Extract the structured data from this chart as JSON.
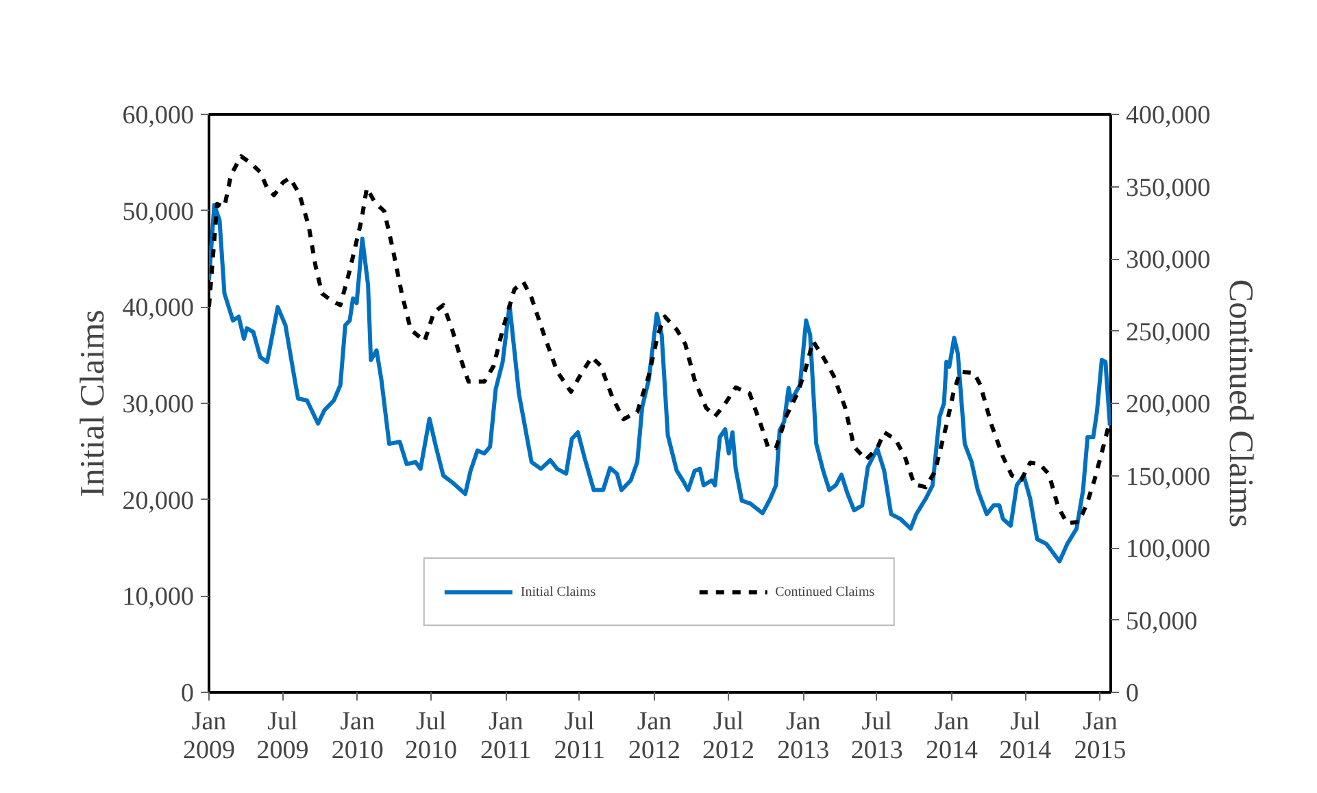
{
  "chart_data": {
    "type": "line",
    "ylabel": "Initial Claims",
    "y2label": "Continued Claims",
    "xlim": [
      "2009-01-01",
      "2015-01-27"
    ],
    "xticks": [
      {
        "value": "2009-01",
        "label": "Jan 2009"
      },
      {
        "value": "2009-07",
        "label": "Jul 2009"
      },
      {
        "value": "2010-01",
        "label": "Jan 2010"
      },
      {
        "value": "2010-07",
        "label": "Jul 2010"
      },
      {
        "value": "2011-01",
        "label": "Jan 2011"
      },
      {
        "value": "2011-07",
        "label": "Jul 2011"
      },
      {
        "value": "2012-01",
        "label": "Jan 2012"
      },
      {
        "value": "2012-07",
        "label": "Jul 2012"
      },
      {
        "value": "2013-01",
        "label": "Jan 2013"
      },
      {
        "value": "2013-07",
        "label": "Jul 2013"
      },
      {
        "value": "2014-01",
        "label": "Jan 2014"
      },
      {
        "value": "2014-07",
        "label": "Jul 2014"
      },
      {
        "value": "2015-01",
        "label": "Jan 2015"
      }
    ],
    "ylim": [
      0,
      60000
    ],
    "yticks": [
      0,
      {
        "value": 10000,
        "label": "10,000"
      },
      {
        "value": 20000,
        "label": "20,000"
      },
      {
        "value": 30000,
        "label": "30,000"
      },
      {
        "value": 40000,
        "label": "40,000"
      },
      {
        "value": 50000,
        "label": "50,000"
      },
      {
        "value": 60000,
        "label": "60,000"
      }
    ],
    "y2lim": [
      0,
      400000
    ],
    "y2ticks": [
      0,
      {
        "value": 50000,
        "label": "50,000"
      },
      {
        "value": 100000,
        "label": "100,000"
      },
      {
        "value": 150000,
        "label": "150,000"
      },
      {
        "value": 200000,
        "label": "200,000"
      },
      {
        "value": 250000,
        "label": "250,000"
      },
      {
        "value": 300000,
        "label": "300,000"
      },
      {
        "value": 350000,
        "label": "350,000"
      },
      {
        "value": 400000,
        "label": "400,000"
      }
    ],
    "legend": "bottom",
    "series": [
      {
        "name": "Initial Claims",
        "color": "#0070c0",
        "line_style": "solid",
        "x": [
          "2009-01-01",
          "2009-01-14",
          "2009-01-27",
          "2009-02-08",
          "2009-03-01",
          "2009-03-15",
          "2009-03-28",
          "2009-04-04",
          "2009-04-20",
          "2009-05-07",
          "2009-05-24",
          "2009-06-19",
          "2009-07-08",
          "2009-07-27",
          "2009-08-08",
          "2009-08-30",
          "2009-09-26",
          "2009-10-12",
          "2009-11-04",
          "2009-11-20",
          "2009-12-02",
          "2009-12-13",
          "2009-12-21",
          "2009-12-30",
          "2010-01-13",
          "2010-01-27",
          "2010-02-03",
          "2010-02-17",
          "2010-03-01",
          "2010-03-20",
          "2010-04-15",
          "2010-05-02",
          "2010-05-24",
          "2010-06-05",
          "2010-06-27",
          "2010-07-14",
          "2010-07-31",
          "2010-08-22",
          "2010-09-23",
          "2010-10-06",
          "2010-10-23",
          "2010-11-09",
          "2010-11-23",
          "2010-12-07",
          "2010-12-24",
          "2011-01-10",
          "2011-02-02",
          "2011-03-05",
          "2011-03-28",
          "2011-04-20",
          "2011-05-07",
          "2011-05-29",
          "2011-06-12",
          "2011-06-27",
          "2011-07-13",
          "2011-08-05",
          "2011-08-28",
          "2011-09-14",
          "2011-10-01",
          "2011-10-12",
          "2011-11-04",
          "2011-11-20",
          "2011-12-02",
          "2011-12-18",
          "2012-01-07",
          "2012-01-19",
          "2012-02-03",
          "2012-02-25",
          "2012-03-11",
          "2012-03-24",
          "2012-04-09",
          "2012-04-22",
          "2012-05-01",
          "2012-05-21",
          "2012-05-29",
          "2012-06-10",
          "2012-06-23",
          "2012-07-02",
          "2012-07-11",
          "2012-07-19",
          "2012-08-03",
          "2012-08-24",
          "2012-09-23",
          "2012-10-12",
          "2012-10-26",
          "2012-11-04",
          "2012-11-15",
          "2012-11-26",
          "2012-12-02",
          "2012-12-24",
          "2013-01-08",
          "2013-01-18",
          "2013-02-02",
          "2013-02-19",
          "2013-03-06",
          "2013-03-22",
          "2013-04-05",
          "2013-04-20",
          "2013-05-06",
          "2013-05-26",
          "2013-06-09",
          "2013-07-02",
          "2013-07-19",
          "2013-08-05",
          "2013-08-28",
          "2013-09-22",
          "2013-10-06",
          "2013-10-29",
          "2013-11-15",
          "2013-12-02",
          "2013-12-13",
          "2013-12-19",
          "2013-12-26",
          "2014-01-07",
          "2014-01-16",
          "2014-02-02",
          "2014-02-19",
          "2014-03-06",
          "2014-03-28",
          "2014-04-14",
          "2014-04-28",
          "2014-05-07",
          "2014-05-26",
          "2014-06-10",
          "2014-06-27",
          "2014-07-13",
          "2014-07-30",
          "2014-08-22",
          "2014-09-23",
          "2014-10-12",
          "2014-11-04",
          "2014-11-20",
          "2014-12-01",
          "2014-12-15",
          "2014-12-24",
          "2015-01-05",
          "2015-01-14",
          "2015-01-25"
        ],
        "values": [
          42800,
          50600,
          49000,
          41400,
          38600,
          39000,
          36700,
          37800,
          37400,
          34800,
          34300,
          40000,
          38100,
          33400,
          30500,
          30300,
          27900,
          29300,
          30300,
          31900,
          38100,
          38600,
          40900,
          40400,
          47100,
          42300,
          34500,
          35500,
          32400,
          25800,
          26000,
          23700,
          23900,
          23200,
          28400,
          25300,
          22500,
          21800,
          20600,
          23000,
          25100,
          24800,
          25500,
          31500,
          34300,
          40200,
          31000,
          23900,
          23200,
          24100,
          23200,
          22700,
          26300,
          27000,
          24400,
          21000,
          21000,
          23300,
          22700,
          21000,
          22000,
          23900,
          29600,
          32400,
          39300,
          37100,
          26700,
          23000,
          22000,
          21000,
          23000,
          23200,
          21500,
          22000,
          21500,
          26500,
          27300,
          24800,
          27000,
          23200,
          19900,
          19600,
          18600,
          20100,
          21500,
          27200,
          28100,
          31600,
          30300,
          31900,
          38600,
          37100,
          25800,
          23000,
          21000,
          21500,
          22600,
          20600,
          18900,
          19400,
          23400,
          25300,
          23000,
          18500,
          18000,
          17000,
          18500,
          20100,
          21500,
          28600,
          30000,
          34300,
          33800,
          36800,
          35200,
          25800,
          23900,
          21000,
          18500,
          19400,
          19400,
          18000,
          17300,
          21500,
          22500,
          20100,
          15900,
          15400,
          13600,
          15400,
          17000,
          21000,
          26500,
          26500,
          29100,
          34500,
          34300,
          27700
        ]
      },
      {
        "name": "Continued Claims",
        "color": "#000000",
        "line_style": "dashed",
        "axis": "y2",
        "x": [
          "2009-01-01",
          "2009-01-21",
          "2009-02-08",
          "2009-02-24",
          "2009-03-21",
          "2009-04-15",
          "2009-05-07",
          "2009-05-24",
          "2009-06-10",
          "2009-07-02",
          "2009-07-19",
          "2009-08-11",
          "2009-09-03",
          "2009-09-20",
          "2009-10-06",
          "2009-10-29",
          "2009-11-20",
          "2009-12-13",
          "2010-01-11",
          "2010-01-24",
          "2010-02-13",
          "2010-03-08",
          "2010-03-28",
          "2010-04-20",
          "2010-05-12",
          "2010-06-15",
          "2010-07-08",
          "2010-07-31",
          "2010-08-22",
          "2010-09-14",
          "2010-10-01",
          "2010-11-09",
          "2010-12-02",
          "2010-12-24",
          "2011-01-22",
          "2011-02-13",
          "2011-03-05",
          "2011-04-04",
          "2011-05-07",
          "2011-06-10",
          "2011-07-02",
          "2011-07-31",
          "2011-08-22",
          "2011-09-20",
          "2011-10-17",
          "2011-11-20",
          "2011-12-18",
          "2012-01-10",
          "2012-01-27",
          "2012-02-25",
          "2012-03-17",
          "2012-04-09",
          "2012-05-07",
          "2012-05-29",
          "2012-06-21",
          "2012-07-19",
          "2012-08-22",
          "2012-09-19",
          "2012-10-06",
          "2012-10-26",
          "2012-11-20",
          "2012-12-18",
          "2013-01-05",
          "2013-01-25",
          "2013-02-19",
          "2013-03-17",
          "2013-04-14",
          "2013-05-06",
          "2013-06-04",
          "2013-07-02",
          "2013-07-19",
          "2013-08-16",
          "2013-09-08",
          "2013-10-01",
          "2013-10-29",
          "2013-11-21",
          "2013-12-19",
          "2014-01-05",
          "2014-01-22",
          "2014-02-25",
          "2014-03-12",
          "2014-04-09",
          "2014-05-07",
          "2014-05-29",
          "2014-06-21",
          "2014-07-13",
          "2014-08-05",
          "2014-08-28",
          "2014-09-20",
          "2014-10-12",
          "2014-11-10",
          "2014-11-30",
          "2014-12-18",
          "2015-01-05",
          "2015-01-25"
        ],
        "values": [
          267000,
          338000,
          336000,
          358000,
          371000,
          366000,
          360000,
          349000,
          344000,
          353000,
          356000,
          345000,
          323000,
          295000,
          276000,
          271000,
          268000,
          292000,
          327000,
          349000,
          339000,
          333000,
          308000,
          276000,
          251000,
          243000,
          263000,
          268000,
          251000,
          229000,
          215000,
          215000,
          226000,
          251000,
          279000,
          284000,
          273000,
          248000,
          222000,
          208000,
          219000,
          232000,
          226000,
          204000,
          189000,
          194000,
          219000,
          248000,
          260000,
          251000,
          241000,
          216000,
          197000,
          191000,
          199000,
          211000,
          207000,
          185000,
          170000,
          169000,
          191000,
          207000,
          222000,
          243000,
          232000,
          219000,
          197000,
          170000,
          161000,
          169000,
          180000,
          175000,
          163000,
          144000,
          142000,
          153000,
          185000,
          207000,
          222000,
          221000,
          213000,
          185000,
          163000,
          150000,
          147000,
          159000,
          158000,
          151000,
          128000,
          117000,
          118000,
          131000,
          147000,
          166000,
          188000
        ]
      }
    ]
  }
}
